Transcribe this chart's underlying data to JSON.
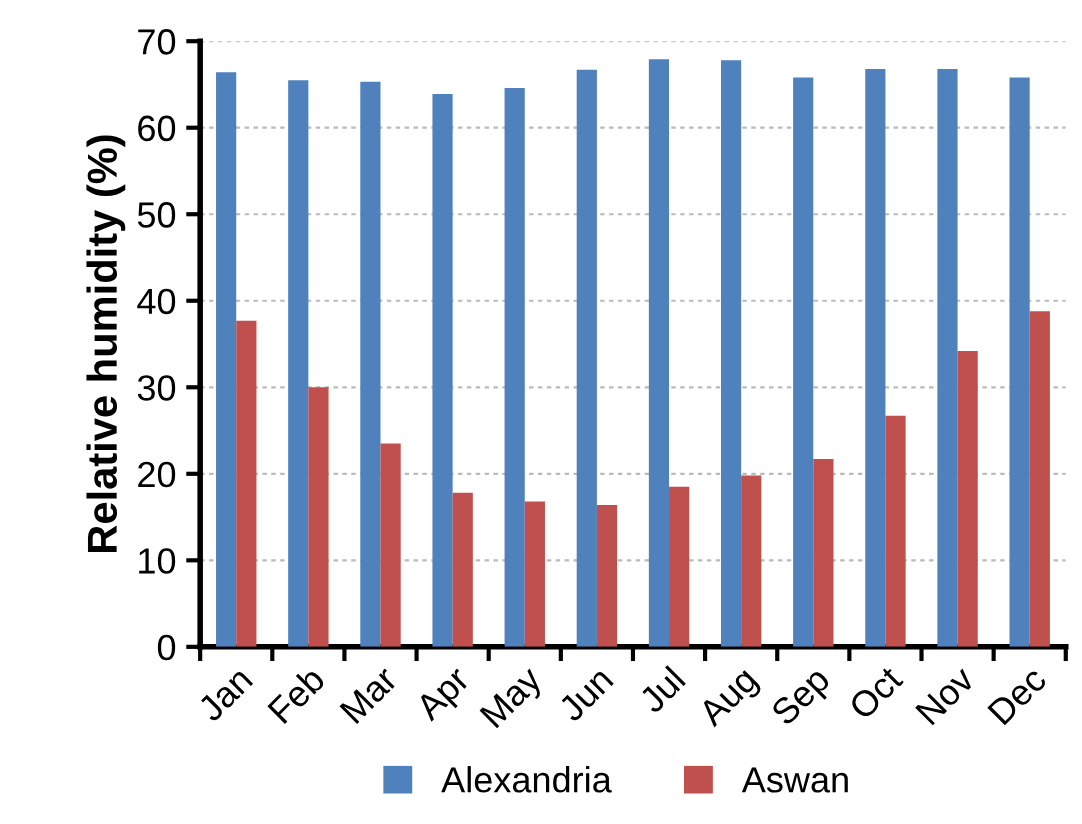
{
  "chart_data": {
    "type": "bar",
    "ylabel": "Relative humidity (%)",
    "categories": [
      "Jan",
      "Feb",
      "Mar",
      "Apr",
      "May",
      "Jun",
      "Jul",
      "Aug",
      "Sep",
      "Oct",
      "Nov",
      "Dec"
    ],
    "series": [
      {
        "name": "Alexandria",
        "color": "#4f81bd",
        "values": [
          66.4,
          65.5,
          65.3,
          63.9,
          64.6,
          66.7,
          67.9,
          67.8,
          65.8,
          66.8,
          66.8,
          65.8
        ]
      },
      {
        "name": "Aswan",
        "color": "#c0504d",
        "values": [
          37.7,
          30.0,
          23.5,
          17.8,
          16.8,
          16.4,
          18.5,
          19.8,
          21.7,
          26.7,
          34.2,
          38.8
        ]
      }
    ],
    "ylim": [
      0,
      70
    ],
    "yticks": [
      0,
      10,
      20,
      30,
      40,
      50,
      60,
      70
    ],
    "grid": "y",
    "legend": "bottom"
  }
}
